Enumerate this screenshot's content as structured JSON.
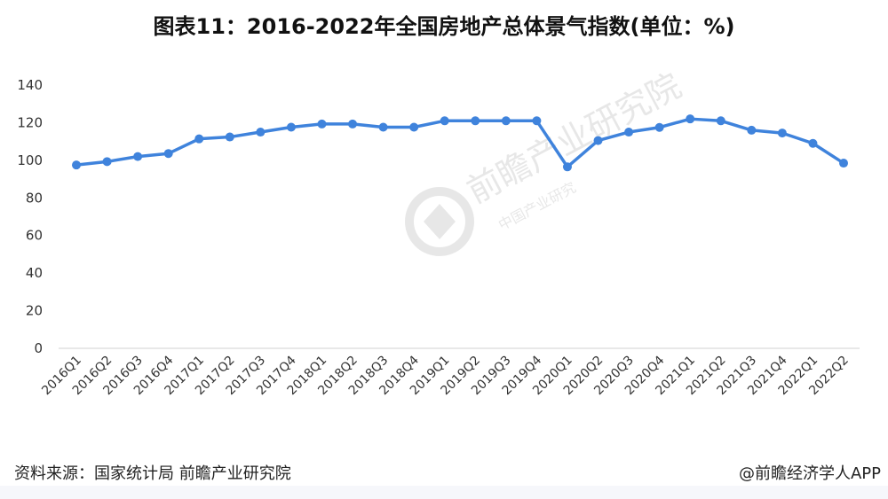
{
  "title": "图表11：2016-2022年全国房地产总体景气指数(单位：%)",
  "source": "资料来源：国家统计局 前瞻产业研究院",
  "credit": "@前瞻经济学人APP",
  "watermark": {
    "brand": "前瞻产业研究院",
    "sub": "中国产业研究",
    "icon": "logo-icon"
  },
  "chart_data": {
    "type": "line",
    "title": "图表11：2016-2022年全国房地产总体景气指数(单位：%)",
    "xlabel": "",
    "ylabel": "",
    "ylim": [
      0,
      140
    ],
    "yticks": [
      0,
      20,
      40,
      60,
      80,
      100,
      120,
      140
    ],
    "grid": false,
    "line_color": "#3f83dc",
    "categories": [
      "2016Q1",
      "2016Q2",
      "2016Q3",
      "2016Q4",
      "2017Q1",
      "2017Q2",
      "2017Q3",
      "2017Q4",
      "2018Q1",
      "2018Q2",
      "2018Q3",
      "2018Q4",
      "2019Q1",
      "2019Q2",
      "2019Q3",
      "2019Q4",
      "2020Q1",
      "2020Q2",
      "2020Q3",
      "2020Q4",
      "2021Q1",
      "2021Q2",
      "2021Q3",
      "2021Q4",
      "2022Q1",
      "2022Q2"
    ],
    "series": [
      {
        "values": [
          97.5,
          99.3,
          102,
          103.6,
          111.4,
          112.4,
          115,
          117.6,
          119.3,
          119.3,
          117.6,
          117.6,
          121,
          121,
          121,
          121,
          96.5,
          110.5,
          115,
          117.5,
          122,
          121,
          116,
          114.5,
          109,
          98.5
        ]
      }
    ]
  }
}
